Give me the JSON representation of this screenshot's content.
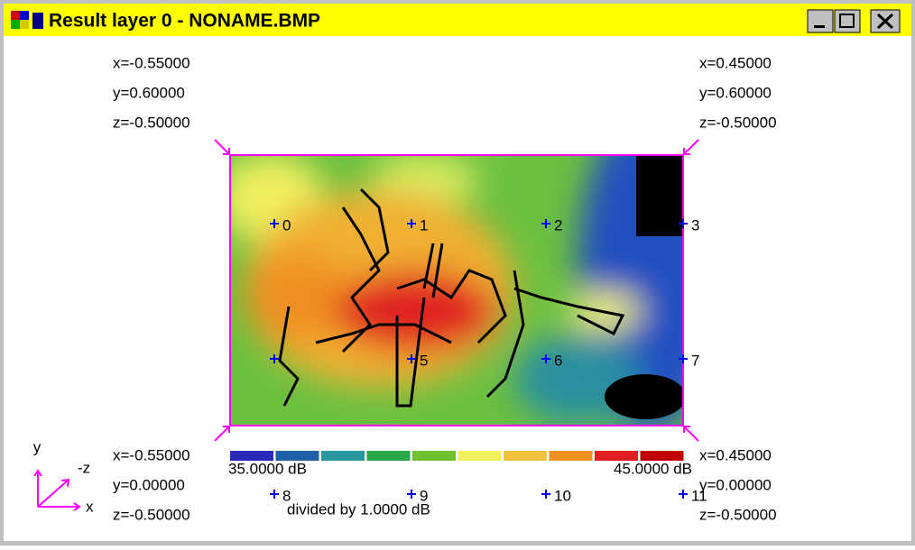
{
  "window": {
    "title": "Result layer 0 - NONAME.BMP"
  },
  "corners": {
    "top_left": [
      "x=-0.55000",
      "y=0.60000",
      "z=-0.50000"
    ],
    "top_right": [
      "x=0.45000",
      "y=0.60000",
      "z=-0.50000"
    ],
    "bottom_left": [
      "x=-0.55000",
      "y=0.00000",
      "z=-0.50000"
    ],
    "bottom_right": [
      "x=0.45000",
      "y=0.00000",
      "z=-0.50000"
    ]
  },
  "markers": [
    "0",
    "1",
    "2",
    "3",
    null,
    "5",
    "6",
    "7",
    "8",
    "9",
    "10",
    "11"
  ],
  "scale": {
    "min_label": "35.0000 dB",
    "max_label": "45.0000 dB",
    "note": "divided by 1.0000 dB"
  },
  "axes": {
    "y": "y",
    "z": "-z",
    "x": "x"
  }
}
